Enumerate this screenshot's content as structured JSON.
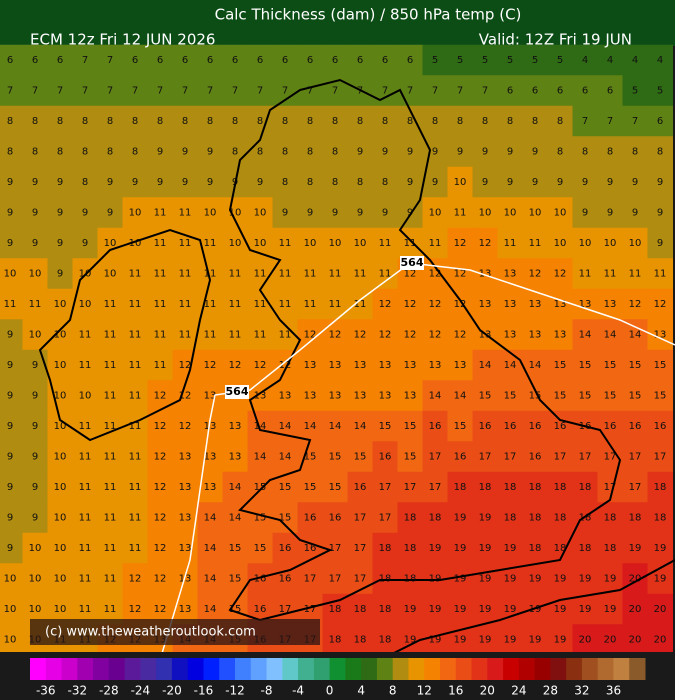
{
  "header": {
    "title": "Calc Thickness (dam) / 850 hPa temp (C)",
    "model_run": "ECM 12z Fri 12 JUN 2026",
    "valid": "Valid: 12Z Fri 19 JUN"
  },
  "contour_labels": [
    "564",
    "564"
  ],
  "copyright": "(c) www.theweatheroutlook.com",
  "colorbar": {
    "ticks": [
      -36,
      -32,
      -28,
      -24,
      -20,
      -16,
      -12,
      -8,
      -4,
      0,
      4,
      8,
      12,
      16,
      20,
      24,
      28,
      32,
      36
    ],
    "colors": [
      "#ff00ff",
      "#e600e6",
      "#cc00cc",
      "#a000b0",
      "#8000a0",
      "#6a0090",
      "#5a1a9a",
      "#4a2aa0",
      "#3030b0",
      "#1010c0",
      "#0000e0",
      "#0020ff",
      "#2050ff",
      "#4080ff",
      "#60a0ff",
      "#80c0ff",
      "#60c8c8",
      "#40b090",
      "#30a070",
      "#109030",
      "#1a7a1a",
      "#2f6a14",
      "#5f8214",
      "#b08c10",
      "#e89400",
      "#f58200",
      "#f26812",
      "#ea4e16",
      "#e23218",
      "#d81a1a",
      "#c80000",
      "#b00000",
      "#980000",
      "#801010",
      "#8a3010",
      "#a05020",
      "#b06a30",
      "#c08040",
      "#8a5a2a"
    ]
  },
  "grid": {
    "rows": [
      [
        6,
        6,
        6,
        7,
        7,
        6,
        6,
        6,
        6,
        6,
        6,
        6,
        6,
        6,
        6,
        6,
        6,
        5,
        5,
        5,
        5,
        5,
        5,
        4,
        4,
        4,
        4
      ],
      [
        7,
        7,
        7,
        7,
        7,
        7,
        7,
        7,
        7,
        7,
        7,
        7,
        7,
        7,
        7,
        7,
        7,
        7,
        7,
        7,
        6,
        6,
        6,
        6,
        6,
        5,
        5
      ],
      [
        8,
        8,
        8,
        8,
        8,
        8,
        8,
        8,
        8,
        8,
        8,
        8,
        8,
        8,
        8,
        8,
        8,
        8,
        8,
        8,
        8,
        8,
        8,
        7,
        7,
        7,
        6
      ],
      [
        8,
        8,
        8,
        8,
        8,
        8,
        9,
        9,
        9,
        8,
        8,
        8,
        8,
        8,
        9,
        9,
        9,
        9,
        9,
        9,
        9,
        9,
        8,
        8,
        8,
        8,
        8
      ],
      [
        9,
        9,
        9,
        8,
        9,
        9,
        9,
        9,
        9,
        9,
        9,
        8,
        8,
        8,
        8,
        8,
        9,
        9,
        10,
        9,
        9,
        9,
        9,
        9,
        9,
        9,
        9
      ],
      [
        9,
        9,
        9,
        9,
        9,
        10,
        11,
        11,
        10,
        10,
        10,
        9,
        9,
        9,
        9,
        9,
        9,
        10,
        11,
        10,
        10,
        10,
        10,
        9,
        9,
        9,
        9
      ],
      [
        9,
        9,
        9,
        9,
        10,
        10,
        11,
        11,
        11,
        10,
        10,
        11,
        10,
        10,
        10,
        11,
        11,
        11,
        12,
        12,
        11,
        11,
        10,
        10,
        10,
        10,
        9
      ],
      [
        10,
        10,
        9,
        10,
        10,
        11,
        11,
        11,
        11,
        11,
        11,
        11,
        11,
        11,
        11,
        11,
        12,
        12,
        12,
        13,
        13,
        12,
        12,
        11,
        11,
        11,
        11
      ],
      [
        11,
        11,
        10,
        10,
        11,
        11,
        11,
        11,
        11,
        11,
        11,
        11,
        11,
        11,
        11,
        12,
        12,
        12,
        12,
        13,
        13,
        13,
        13,
        13,
        13,
        12,
        12
      ],
      [
        9,
        10,
        10,
        11,
        11,
        11,
        11,
        11,
        11,
        11,
        11,
        11,
        12,
        12,
        12,
        12,
        12,
        12,
        12,
        13,
        13,
        13,
        13,
        14,
        14,
        14,
        13
      ],
      [
        9,
        9,
        10,
        11,
        11,
        11,
        11,
        12,
        12,
        12,
        12,
        12,
        13,
        13,
        13,
        13,
        13,
        13,
        13,
        14,
        14,
        14,
        15,
        15,
        15,
        15,
        15
      ],
      [
        9,
        9,
        10,
        10,
        11,
        11,
        12,
        12,
        13,
        13,
        13,
        13,
        13,
        13,
        13,
        13,
        13,
        14,
        14,
        15,
        15,
        15,
        15,
        15,
        15,
        15,
        15
      ],
      [
        9,
        9,
        10,
        11,
        11,
        11,
        12,
        12,
        13,
        13,
        14,
        14,
        14,
        14,
        14,
        15,
        15,
        16,
        15,
        16,
        16,
        16,
        16,
        16,
        16,
        16,
        16
      ],
      [
        9,
        9,
        10,
        11,
        11,
        11,
        12,
        13,
        13,
        13,
        14,
        14,
        15,
        15,
        15,
        16,
        15,
        17,
        16,
        17,
        17,
        16,
        17,
        17,
        17,
        17,
        17
      ],
      [
        9,
        9,
        10,
        11,
        11,
        11,
        12,
        13,
        13,
        14,
        15,
        15,
        15,
        15,
        16,
        17,
        17,
        17,
        18,
        18,
        18,
        18,
        18,
        18,
        17,
        17,
        18
      ],
      [
        9,
        9,
        10,
        11,
        11,
        11,
        12,
        13,
        14,
        14,
        15,
        15,
        16,
        16,
        17,
        17,
        18,
        18,
        19,
        19,
        18,
        18,
        18,
        18,
        18,
        18,
        18
      ],
      [
        9,
        10,
        10,
        11,
        11,
        11,
        12,
        13,
        14,
        15,
        15,
        16,
        16,
        17,
        17,
        18,
        18,
        19,
        19,
        19,
        19,
        18,
        18,
        18,
        18,
        19,
        19
      ],
      [
        10,
        10,
        10,
        11,
        11,
        12,
        12,
        13,
        14,
        15,
        16,
        16,
        17,
        17,
        17,
        18,
        18,
        19,
        19,
        19,
        19,
        19,
        19,
        19,
        19,
        20,
        19
      ],
      [
        10,
        10,
        10,
        11,
        11,
        12,
        12,
        13,
        14,
        15,
        16,
        17,
        17,
        18,
        18,
        18,
        19,
        19,
        19,
        19,
        19,
        19,
        19,
        19,
        19,
        20,
        20
      ],
      [
        10,
        10,
        11,
        11,
        12,
        12,
        13,
        14,
        14,
        15,
        16,
        17,
        17,
        18,
        18,
        18,
        19,
        19,
        19,
        19,
        19,
        19,
        19,
        20,
        20,
        20,
        20
      ]
    ]
  }
}
